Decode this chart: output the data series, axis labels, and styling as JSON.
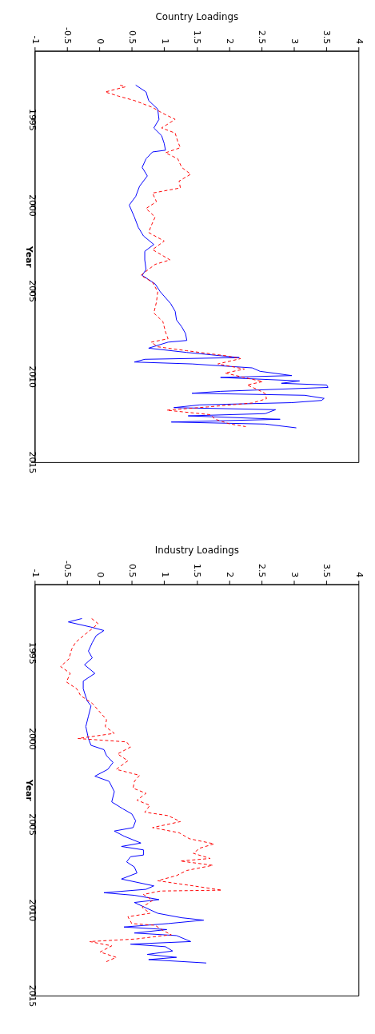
{
  "chart_data": [
    {
      "type": "line",
      "xlabel": "Country Loadings",
      "ylabel": "Year",
      "ylim": [
        2015,
        1991
      ],
      "yticks": [
        1995,
        2000,
        2005,
        2010,
        2015
      ],
      "xlim": [
        -1,
        4
      ],
      "xticks": [
        -1,
        -0.5,
        0,
        0.5,
        1,
        1.5,
        2,
        2.5,
        3,
        3.5,
        4
      ],
      "grid": false,
      "series": [
        {
          "color": "#0000ff",
          "line_style": "solid",
          "values": [
            1993.0,
            1993.4,
            1993.9,
            1994.4,
            1995.0,
            1995.5,
            1995.95,
            1996.4,
            1996.8,
            1996.9,
            1997.3,
            1997.8,
            1998.3,
            1998.9,
            1999.5,
            2000.0,
            2000.7,
            2001.3,
            2001.8,
            2002.3,
            2002.7,
            2003.2,
            2003.76,
            2004.1,
            2004.6,
            2005.06,
            2005.75,
            2006.2,
            2006.7,
            2007.1,
            2007.5,
            2007.9,
            2008.0,
            2008.35,
            2008.6,
            2008.9,
            2009.0,
            2009.16,
            2009.27,
            2009.5,
            2009.7,
            2009.95,
            2010.06,
            2010.26,
            2010.4,
            2010.5,
            2010.64,
            2010.87,
            2010.98,
            2011.1,
            2011.28,
            2011.4,
            2011.53,
            2011.66,
            2011.82,
            2011.94,
            2012.17,
            2012.3,
            2012.5,
            2012.66,
            2012.78,
            2013.0
          ],
          "x": [
            0.56,
            0.72,
            0.76,
            0.9,
            0.92,
            0.84,
            0.96,
            1.0,
            1.02,
            0.82,
            0.72,
            0.66,
            0.74,
            0.62,
            0.56,
            0.46,
            0.54,
            0.6,
            0.68,
            0.84,
            0.7,
            0.7,
            0.72,
            0.66,
            0.86,
            0.94,
            1.1,
            1.17,
            1.19,
            1.27,
            1.33,
            1.35,
            1.06,
            0.76,
            1.35,
            2.16,
            0.7,
            0.54,
            1.43,
            2.36,
            2.48,
            2.97,
            1.87,
            3.09,
            2.81,
            3.51,
            3.53,
            1.87,
            1.43,
            3.17,
            3.47,
            3.43,
            2.97,
            1.55,
            1.15,
            2.72,
            2.56,
            1.37,
            2.79,
            1.11,
            2.56,
            3.04
          ]
        },
        {
          "color": "#ff0000",
          "line_style": "dashed",
          "values": [
            1993.0,
            1993.1,
            1993.4,
            1993.65,
            1993.9,
            1994.3,
            1994.65,
            1995.0,
            1995.5,
            1995.8,
            1996.3,
            1996.65,
            1996.95,
            1997.3,
            1997.8,
            1998.2,
            1998.6,
            1999.0,
            1999.3,
            1999.8,
            2000.2,
            2000.7,
            2001.2,
            2001.6,
            2002.1,
            2002.6,
            2003.2,
            2003.46,
            2004.1,
            2004.5,
            2005.06,
            2005.67,
            2006.3,
            2006.8,
            2007.4,
            2007.8,
            2008.0,
            2008.27,
            2008.5,
            2008.8,
            2008.96,
            2009.27,
            2009.57,
            2009.8,
            2010.03,
            2010.3,
            2010.5,
            2010.76,
            2011.0,
            2011.3,
            2011.55,
            2011.78,
            2011.97,
            2012.23,
            2012.5,
            2012.76,
            2012.93
          ],
          "x": [
            0.32,
            0.4,
            0.09,
            0.3,
            0.54,
            0.82,
            0.98,
            1.17,
            0.96,
            1.17,
            1.21,
            1.25,
            1.02,
            1.21,
            1.27,
            1.41,
            1.23,
            1.25,
            0.82,
            0.88,
            0.72,
            0.86,
            0.8,
            0.76,
            1.0,
            0.82,
            1.09,
            0.86,
            0.64,
            0.82,
            0.9,
            0.88,
            0.84,
            0.98,
            1.02,
            1.06,
            0.8,
            0.9,
            1.35,
            1.96,
            2.18,
            1.83,
            2.24,
            1.94,
            2.2,
            2.52,
            2.28,
            2.44,
            2.56,
            2.58,
            2.36,
            1.67,
            1.04,
            1.71,
            1.79,
            2.0,
            2.26
          ]
        }
      ]
    },
    {
      "type": "line",
      "xlabel": "Industry Loadings",
      "ylabel": "Year",
      "ylim": [
        2015,
        1991
      ],
      "yticks": [
        1995,
        2000,
        2005,
        2010,
        2015
      ],
      "xlim": [
        -1,
        4
      ],
      "xticks": [
        -1,
        -0.5,
        0,
        0.5,
        1,
        1.5,
        2,
        2.5,
        3,
        3.5,
        4
      ],
      "grid": false,
      "series": [
        {
          "color": "#0000ff",
          "line_style": "solid",
          "values": [
            1993.0,
            1993.2,
            1993.5,
            1993.7,
            1994.0,
            1994.4,
            1994.9,
            1995.3,
            1995.7,
            1996.2,
            1996.65,
            1997.1,
            1997.8,
            1998.1,
            1998.7,
            1999.3,
            2000.0,
            2000.4,
            2000.65,
            2001.0,
            2001.4,
            2001.8,
            2002.2,
            2002.5,
            2003.1,
            2003.7,
            2004.1,
            2004.4,
            2004.8,
            2005.2,
            2005.4,
            2005.7,
            2006.1,
            2006.3,
            2006.5,
            2006.8,
            2006.9,
            2007.2,
            2007.5,
            2007.85,
            2008.2,
            2008.6,
            2008.8,
            2009.0,
            2009.15,
            2009.4,
            2009.57,
            2009.85,
            2010.2,
            2010.46,
            2010.6,
            2010.8,
            2011.0,
            2011.15,
            2011.35,
            2011.5,
            2011.85,
            2012.0,
            2012.15,
            2012.4,
            2012.6,
            2012.77,
            2012.9,
            2013.1
          ],
          "x": [
            -0.27,
            -0.48,
            -0.13,
            0.07,
            -0.05,
            -0.11,
            -0.17,
            -0.11,
            -0.23,
            -0.07,
            -0.25,
            -0.25,
            -0.19,
            -0.13,
            -0.17,
            -0.21,
            -0.17,
            -0.13,
            0.07,
            0.11,
            0.21,
            0.13,
            -0.07,
            0.15,
            0.23,
            0.19,
            0.36,
            0.5,
            0.56,
            0.52,
            0.23,
            0.38,
            0.64,
            0.34,
            0.68,
            0.68,
            0.48,
            0.42,
            0.54,
            0.58,
            0.34,
            0.84,
            0.72,
            0.07,
            0.54,
            0.92,
            0.54,
            0.7,
            0.9,
            1.27,
            1.61,
            1.06,
            0.38,
            1.04,
            0.54,
            1.19,
            1.41,
            0.48,
            1.02,
            1.13,
            0.74,
            1.19,
            0.76,
            1.65
          ]
        },
        {
          "color": "#ff0000",
          "line_style": "dashed",
          "values": [
            1993.0,
            1993.3,
            1993.65,
            1993.95,
            1994.4,
            1994.8,
            1995.35,
            1995.8,
            1996.2,
            1996.7,
            1997.1,
            1997.5,
            1997.95,
            1998.3,
            1998.9,
            1999.3,
            1999.7,
            2000.0,
            2000.2,
            2000.5,
            2000.9,
            2001.3,
            2001.8,
            2002.15,
            2002.5,
            2002.9,
            2003.2,
            2003.6,
            2003.9,
            2004.3,
            2004.5,
            2004.85,
            2005.2,
            2005.5,
            2005.85,
            2006.15,
            2006.4,
            2006.7,
            2007.0,
            2007.15,
            2007.4,
            2007.7,
            2008.0,
            2008.3,
            2008.6,
            2008.85,
            2008.9,
            2009.1,
            2009.45,
            2009.85,
            2010.2,
            2010.4,
            2010.8,
            2010.9,
            2011.2,
            2011.45,
            2011.7,
            2011.85,
            2012.1,
            2012.46,
            2012.77,
            2013.05
          ],
          "x": [
            -0.12,
            -0.02,
            -0.13,
            -0.23,
            -0.37,
            -0.43,
            -0.47,
            -0.6,
            -0.45,
            -0.51,
            -0.35,
            -0.29,
            -0.11,
            -0.03,
            0.11,
            0.09,
            0.23,
            -0.33,
            0.42,
            0.48,
            0.28,
            0.44,
            0.26,
            0.62,
            0.54,
            0.52,
            0.72,
            0.58,
            0.78,
            0.7,
            1.06,
            1.25,
            0.82,
            1.23,
            1.39,
            1.77,
            1.55,
            1.45,
            1.71,
            1.25,
            1.75,
            1.35,
            1.19,
            0.9,
            1.45,
            1.89,
            0.94,
            0.68,
            0.82,
            0.66,
            0.78,
            0.44,
            0.5,
            0.86,
            0.98,
            1.11,
            0.56,
            -0.15,
            0.19,
            0.01,
            0.26,
            0.09
          ]
        }
      ]
    }
  ]
}
